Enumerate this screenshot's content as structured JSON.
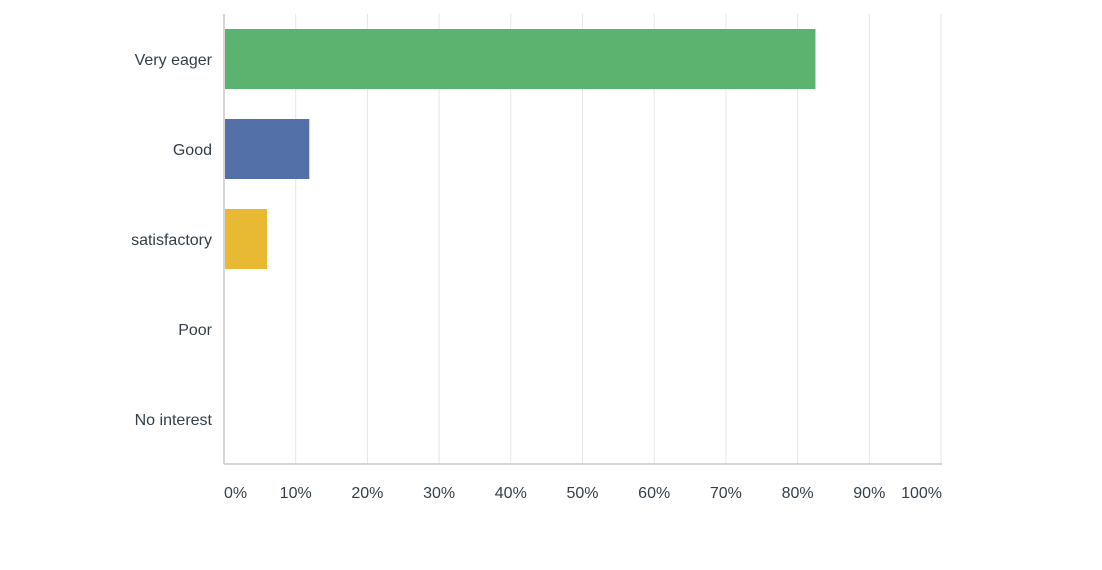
{
  "chart_data": {
    "type": "bar",
    "orientation": "horizontal",
    "categories": [
      "Very eager",
      "Good",
      "satisfactory",
      "Poor",
      "No interest"
    ],
    "values": [
      82.35,
      11.76,
      5.88,
      0,
      0
    ],
    "colors": [
      "#5bb36f",
      "#5371a8",
      "#e8b932",
      "#c1c1c1",
      "#c1c1c1"
    ],
    "xlim": [
      0,
      100
    ],
    "xticks": [
      0,
      10,
      20,
      30,
      40,
      50,
      60,
      70,
      80,
      90,
      100
    ],
    "xtick_labels": [
      "0%",
      "10%",
      "20%",
      "30%",
      "40%",
      "50%",
      "60%",
      "70%",
      "80%",
      "90%",
      "100%"
    ],
    "grid": true,
    "gridline_color": "#e6e6e6",
    "axis_color": "#c8c8c8",
    "text_color": "#333e48"
  }
}
